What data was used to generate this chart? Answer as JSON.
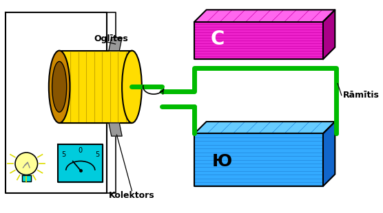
{
  "bg_color": "#ffffff",
  "wire_color": "#00bb00",
  "wire_lw": 5,
  "magnet_top_face": "#ee22cc",
  "magnet_top_top": "#ff66ee",
  "magnet_top_side": "#aa0088",
  "magnet_bot_face": "#33aaff",
  "magnet_bot_top": "#66ccff",
  "magnet_bot_side": "#1166cc",
  "cyl_body": "#ffdd00",
  "cyl_dark": "#cc8800",
  "cyl_inner": "#885500",
  "brush_color": "#999999",
  "ammeter_color": "#00ddee",
  "bulb_glass": "#ffffcc",
  "label_oglites": "Oglītes",
  "label_kolektors": "Kolektors",
  "label_ramitis": "Rāmītis",
  "label_c": "C",
  "label_yu": "Ю"
}
